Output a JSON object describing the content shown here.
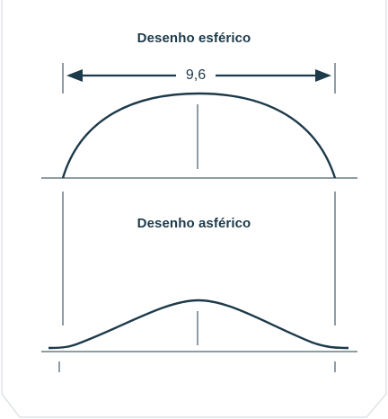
{
  "diagram": {
    "spherical_title": "Desenho esférico",
    "aspherical_title": "Desenho asférico",
    "dimension_label": "9,6"
  },
  "colors": {
    "line": "#1d3a4a",
    "frame": "#d7dde2"
  }
}
